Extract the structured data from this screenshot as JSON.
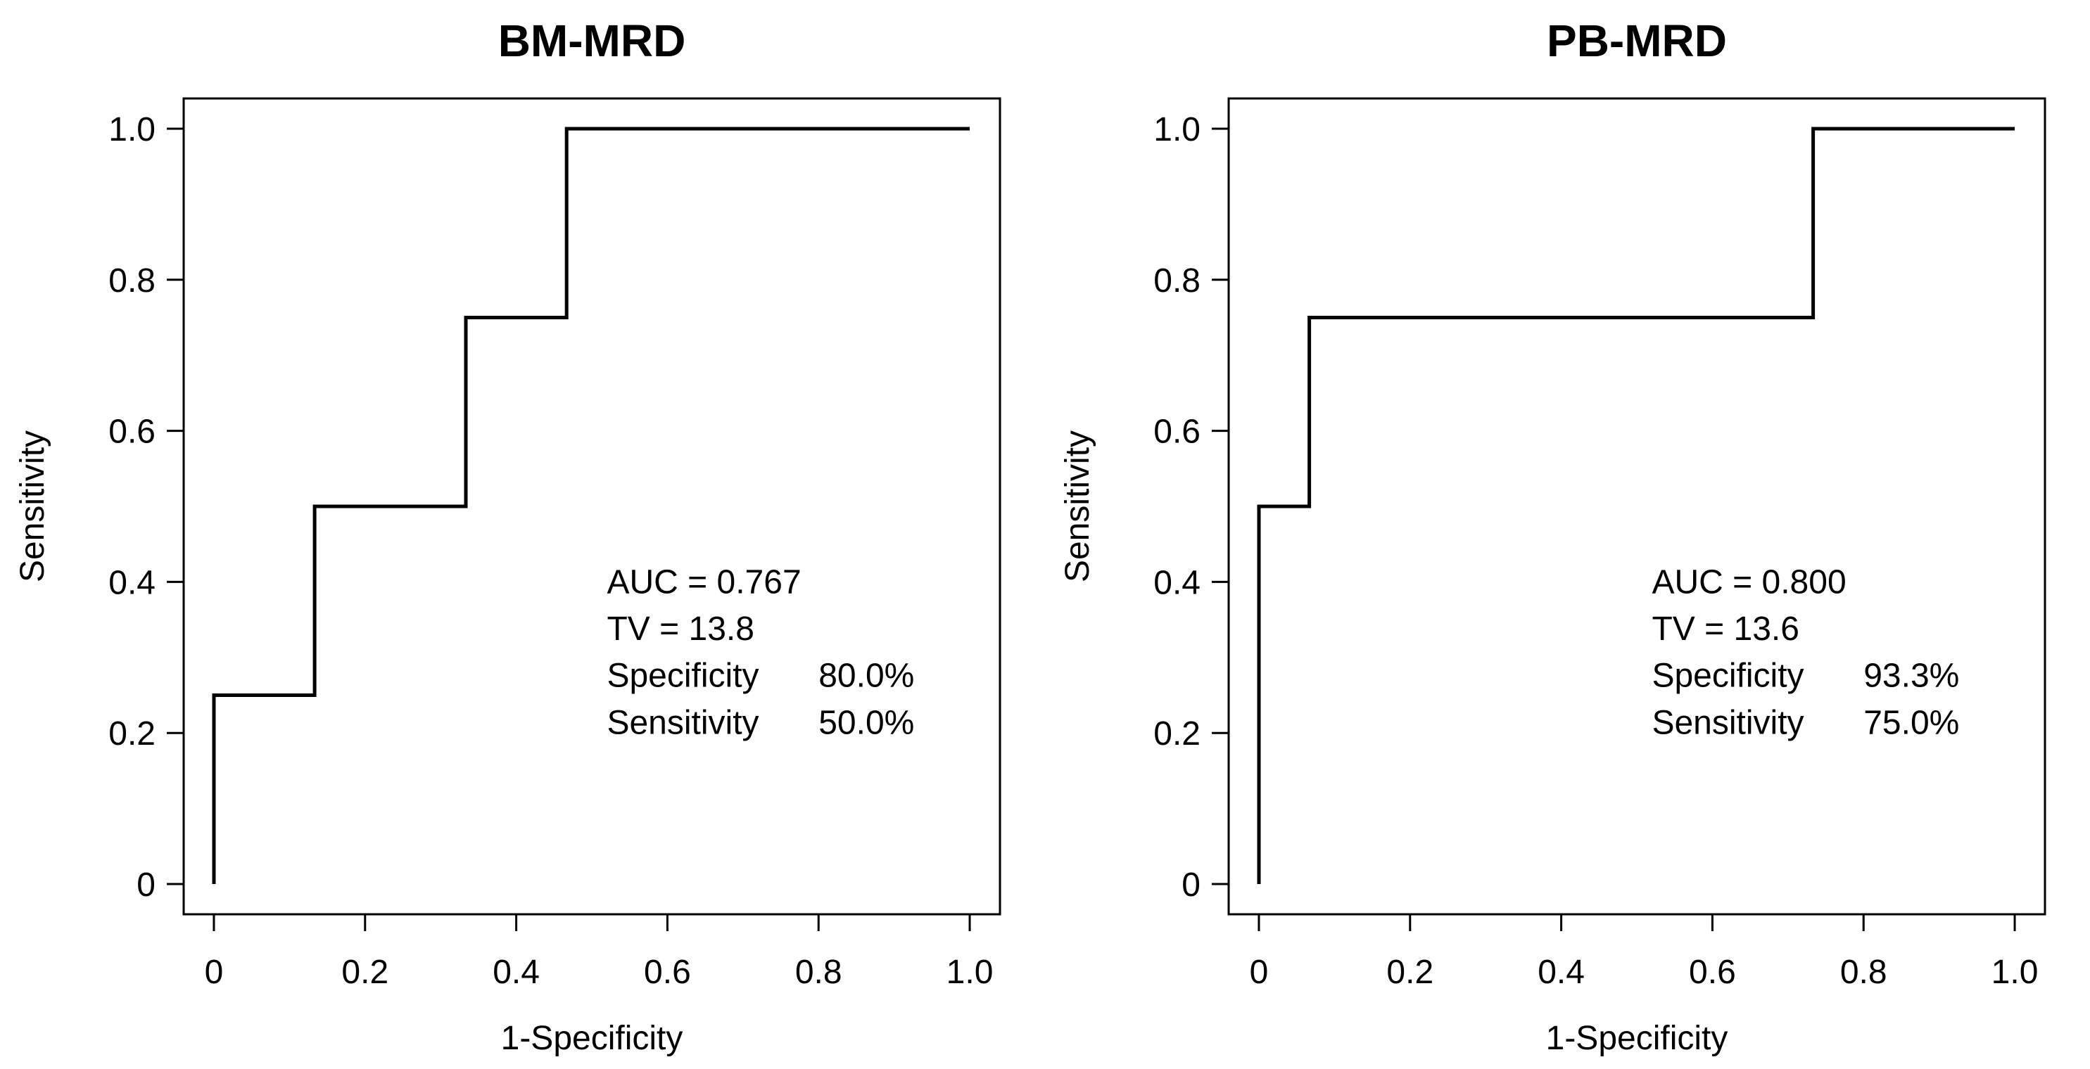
{
  "figure": {
    "background": "#ffffff",
    "ink_color": "#000000"
  },
  "chart_data": [
    {
      "type": "line",
      "variant": "roc-step-curve",
      "title": "BM-MRD",
      "xlabel": "1-Specificity",
      "ylabel": "Sensitivity",
      "xlim": [
        0,
        1
      ],
      "ylim": [
        0,
        1
      ],
      "grid": false,
      "legend": "none",
      "xticks": {
        "values": [
          0,
          0.2,
          0.4,
          0.6,
          0.8,
          1.0
        ],
        "labels": [
          "0",
          "0.2",
          "0.4",
          "0.6",
          "0.8",
          "1.0"
        ]
      },
      "yticks": {
        "values": [
          0,
          0.2,
          0.4,
          0.6,
          0.8,
          1.0
        ],
        "labels": [
          "0",
          "0.2",
          "0.4",
          "0.6",
          "0.8",
          "1.0"
        ]
      },
      "series": [
        {
          "name": "ROC curve",
          "points": [
            [
              0,
              0
            ],
            [
              0,
              0.25
            ],
            [
              0.1333,
              0.25
            ],
            [
              0.1333,
              0.5
            ],
            [
              0.3333,
              0.5
            ],
            [
              0.3333,
              0.75
            ],
            [
              0.4667,
              0.75
            ],
            [
              0.4667,
              1.0
            ],
            [
              1.0,
              1.0
            ]
          ]
        }
      ],
      "annotation": {
        "lines": [
          {
            "label": "AUC = 0.767",
            "value": ""
          },
          {
            "label": "TV = 13.8",
            "value": ""
          },
          {
            "label": "Specificity",
            "value": "80.0%"
          },
          {
            "label": "Sensitivity",
            "value": "50.0%"
          }
        ]
      }
    },
    {
      "type": "line",
      "variant": "roc-step-curve",
      "title": "PB-MRD",
      "xlabel": "1-Specificity",
      "ylabel": "Sensitivity",
      "xlim": [
        0,
        1
      ],
      "ylim": [
        0,
        1
      ],
      "grid": false,
      "legend": "none",
      "xticks": {
        "values": [
          0,
          0.2,
          0.4,
          0.6,
          0.8,
          1.0
        ],
        "labels": [
          "0",
          "0.2",
          "0.4",
          "0.6",
          "0.8",
          "1.0"
        ]
      },
      "yticks": {
        "values": [
          0,
          0.2,
          0.4,
          0.6,
          0.8,
          1.0
        ],
        "labels": [
          "0",
          "0.2",
          "0.4",
          "0.6",
          "0.8",
          "1.0"
        ]
      },
      "series": [
        {
          "name": "ROC curve",
          "points": [
            [
              0,
              0
            ],
            [
              0,
              0.5
            ],
            [
              0.0667,
              0.5
            ],
            [
              0.0667,
              0.75
            ],
            [
              0.7333,
              0.75
            ],
            [
              0.7333,
              1.0
            ],
            [
              1.0,
              1.0
            ]
          ]
        }
      ],
      "annotation": {
        "lines": [
          {
            "label": "AUC = 0.800",
            "value": ""
          },
          {
            "label": "TV = 13.6",
            "value": ""
          },
          {
            "label": "Specificity",
            "value": "93.3%"
          },
          {
            "label": "Sensitivity",
            "value": "75.0%"
          }
        ]
      }
    }
  ]
}
